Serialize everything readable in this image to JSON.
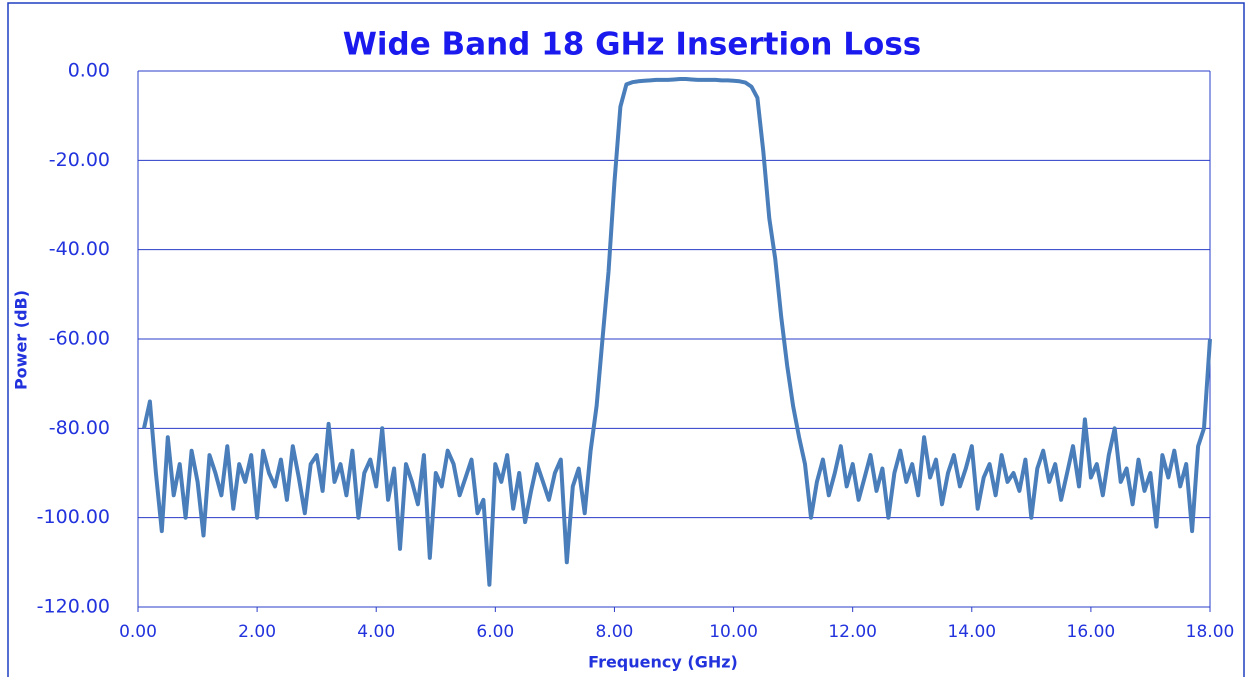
{
  "chart_data": {
    "type": "line",
    "title": "Wide Band 18 GHz Insertion Loss",
    "xlabel": "Frequency (GHz)",
    "ylabel": "Power (dB)",
    "xlim": [
      0,
      18
    ],
    "ylim": [
      -120,
      0
    ],
    "xticks": [
      {
        "value": 0,
        "label": "0.00"
      },
      {
        "value": 2,
        "label": "2.00"
      },
      {
        "value": 4,
        "label": "4.00"
      },
      {
        "value": 6,
        "label": "6.00"
      },
      {
        "value": 8,
        "label": "8.00"
      },
      {
        "value": 10,
        "label": "10.00"
      },
      {
        "value": 12,
        "label": "12.00"
      },
      {
        "value": 14,
        "label": "14.00"
      },
      {
        "value": 16,
        "label": "16.00"
      },
      {
        "value": 18,
        "label": "18.00"
      }
    ],
    "yticks": [
      {
        "value": 0,
        "label": "0.00"
      },
      {
        "value": -20,
        "label": "-20.00"
      },
      {
        "value": -40,
        "label": "-40.00"
      },
      {
        "value": -60,
        "label": "-60.00"
      },
      {
        "value": -80,
        "label": "-80.00"
      },
      {
        "value": -100,
        "label": "-100.00"
      },
      {
        "value": -120,
        "label": "-120.00"
      }
    ],
    "grid": true,
    "x": [
      0.1,
      0.2,
      0.3,
      0.4,
      0.5,
      0.6,
      0.7,
      0.8,
      0.9,
      1.0,
      1.1,
      1.2,
      1.3,
      1.4,
      1.5,
      1.6,
      1.7,
      1.8,
      1.9,
      2.0,
      2.1,
      2.2,
      2.3,
      2.4,
      2.5,
      2.6,
      2.7,
      2.8,
      2.9,
      3.0,
      3.1,
      3.2,
      3.3,
      3.4,
      3.5,
      3.6,
      3.7,
      3.8,
      3.9,
      4.0,
      4.1,
      4.2,
      4.3,
      4.4,
      4.5,
      4.6,
      4.7,
      4.8,
      4.9,
      5.0,
      5.1,
      5.2,
      5.3,
      5.4,
      5.5,
      5.6,
      5.7,
      5.8,
      5.9,
      6.0,
      6.1,
      6.2,
      6.3,
      6.4,
      6.5,
      6.6,
      6.7,
      6.8,
      6.9,
      7.0,
      7.1,
      7.2,
      7.3,
      7.4,
      7.5,
      7.6,
      7.7,
      7.8,
      7.9,
      8.0,
      8.1,
      8.2,
      8.3,
      8.4,
      8.5,
      8.6,
      8.7,
      8.8,
      8.9,
      9.0,
      9.1,
      9.2,
      9.3,
      9.4,
      9.5,
      9.6,
      9.7,
      9.8,
      9.9,
      10.0,
      10.1,
      10.2,
      10.3,
      10.4,
      10.5,
      10.6,
      10.7,
      10.8,
      10.9,
      11.0,
      11.1,
      11.2,
      11.3,
      11.4,
      11.5,
      11.6,
      11.7,
      11.8,
      11.9,
      12.0,
      12.1,
      12.2,
      12.3,
      12.4,
      12.5,
      12.6,
      12.7,
      12.8,
      12.9,
      13.0,
      13.1,
      13.2,
      13.3,
      13.4,
      13.5,
      13.6,
      13.7,
      13.8,
      13.9,
      14.0,
      14.1,
      14.2,
      14.3,
      14.4,
      14.5,
      14.6,
      14.7,
      14.8,
      14.9,
      15.0,
      15.1,
      15.2,
      15.3,
      15.4,
      15.5,
      15.6,
      15.7,
      15.8,
      15.9,
      16.0,
      16.1,
      16.2,
      16.3,
      16.4,
      16.5,
      16.6,
      16.7,
      16.8,
      16.9,
      17.0,
      17.1,
      17.2,
      17.3,
      17.4,
      17.5,
      17.6,
      17.7,
      17.8,
      17.9,
      18.0
    ],
    "series": [
      {
        "color": "#4a7ebb",
        "values": [
          -80,
          -74,
          -90,
          -103,
          -82,
          -95,
          -88,
          -100,
          -85,
          -92,
          -104,
          -86,
          -90,
          -95,
          -84,
          -98,
          -88,
          -92,
          -86,
          -100,
          -85,
          -90,
          -93,
          -87,
          -96,
          -84,
          -91,
          -99,
          -88,
          -86,
          -94,
          -79,
          -92,
          -88,
          -95,
          -85,
          -100,
          -90,
          -87,
          -93,
          -80,
          -96,
          -89,
          -107,
          -88,
          -92,
          -97,
          -86,
          -109,
          -90,
          -93,
          -85,
          -88,
          -95,
          -91,
          -87,
          -99,
          -96,
          -115,
          -88,
          -92,
          -86,
          -98,
          -90,
          -101,
          -94,
          -88,
          -92,
          -96,
          -90,
          -87,
          -110,
          -93,
          -89,
          -99,
          -85,
          -75,
          -60,
          -45,
          -25,
          -8,
          -3,
          -2.5,
          -2.3,
          -2.2,
          -2.1,
          -2,
          -2,
          -2,
          -1.9,
          -1.8,
          -1.8,
          -1.9,
          -2,
          -2,
          -2,
          -2,
          -2.1,
          -2.1,
          -2.2,
          -2.3,
          -2.6,
          -3.5,
          -6,
          -18,
          -33,
          -42,
          -55,
          -66,
          -75,
          -82,
          -88,
          -100,
          -92,
          -87,
          -95,
          -90,
          -84,
          -93,
          -88,
          -96,
          -91,
          -86,
          -94,
          -89,
          -100,
          -90,
          -85,
          -92,
          -88,
          -95,
          -82,
          -91,
          -87,
          -97,
          -90,
          -86,
          -93,
          -89,
          -84,
          -98,
          -91,
          -88,
          -95,
          -86,
          -92,
          -90,
          -94,
          -87,
          -100,
          -89,
          -85,
          -92,
          -88,
          -96,
          -90,
          -84,
          -93,
          -78,
          -91,
          -88,
          -95,
          -86,
          -80,
          -92,
          -89,
          -97,
          -87,
          -94,
          -90,
          -102,
          -86,
          -91,
          -85,
          -93,
          -88,
          -103,
          -84,
          -80,
          -60
        ]
      }
    ]
  }
}
